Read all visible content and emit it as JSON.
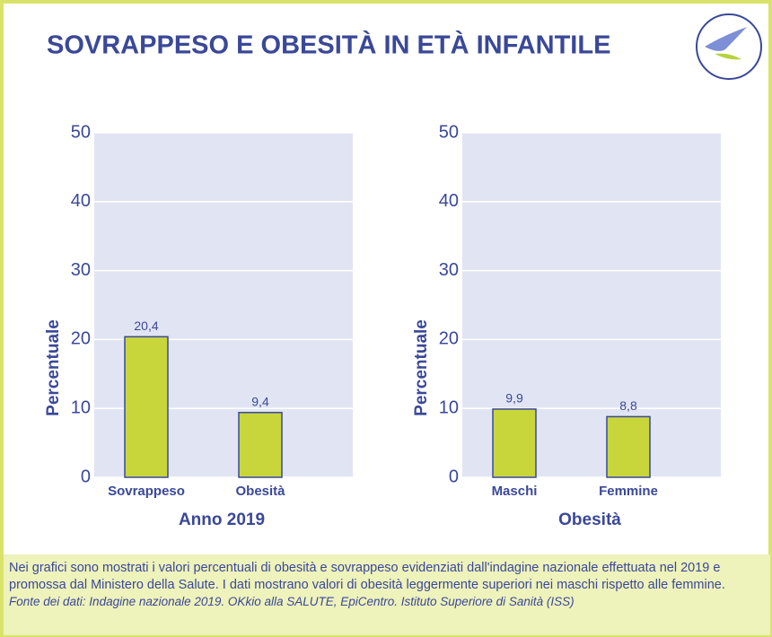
{
  "title": "SOVRAPPESO E OBESITÀ IN ETÀ INFANTILE",
  "chart_data": [
    {
      "type": "bar",
      "xlabel": "Anno 2019",
      "ylabel": "Percentuale",
      "categories": [
        "Sovrappeso",
        "Obesità"
      ],
      "values": [
        20.4,
        9.4
      ],
      "value_labels": [
        "20,4",
        "9,4"
      ],
      "color": "#c9d63b",
      "ylim": [
        0,
        50
      ],
      "yticks": [
        0,
        10,
        20,
        30,
        40,
        50
      ],
      "grid": true
    },
    {
      "type": "bar",
      "xlabel": "Obesità",
      "ylabel": "Percentuale",
      "categories": [
        "Maschi",
        "Femmine"
      ],
      "values": [
        9.9,
        8.8
      ],
      "value_labels": [
        "9,9",
        "8,8"
      ],
      "color": "#c9d63b",
      "ylim": [
        0,
        50
      ],
      "yticks": [
        0,
        10,
        20,
        30,
        40,
        50
      ],
      "grid": true
    }
  ],
  "note": "Nei grafici sono mostrati i valori percentuali di obesità e sovrappeso evidenziati dall'indagine nazionale effettuata nel 2019 e promossa dal Ministero della Salute. I dati mostrano valori di obesità leggermente superiori nei maschi rispetto alle femmine.",
  "source": "Fonte dei dati: Indagine nazionale 2019. OKkio alla SALUTE, EpiCentro. Istituto Superiore di Sanità (ISS)"
}
